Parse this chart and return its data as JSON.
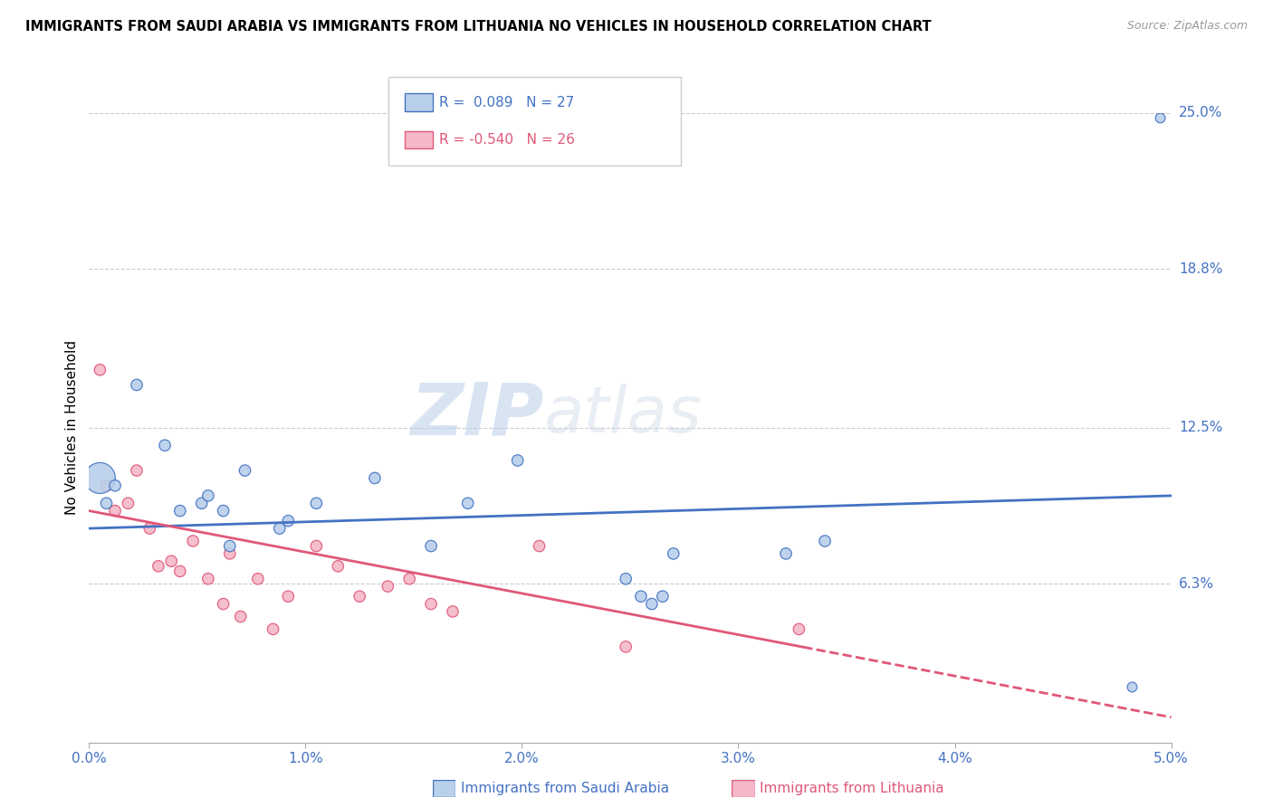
{
  "title": "IMMIGRANTS FROM SAUDI ARABIA VS IMMIGRANTS FROM LITHUANIA NO VEHICLES IN HOUSEHOLD CORRELATION CHART",
  "source": "Source: ZipAtlas.com",
  "ylabel": "No Vehicles in Household",
  "x_min": 0.0,
  "x_max": 5.0,
  "y_min": 0.0,
  "y_max": 25.0,
  "y_ticks": [
    0.0,
    6.3,
    12.5,
    18.8,
    25.0
  ],
  "x_ticks": [
    0.0,
    1.0,
    2.0,
    3.0,
    4.0,
    5.0
  ],
  "color_saudi": "#b8d0ea",
  "color_lithuania": "#f4b8c8",
  "color_saudi_line": "#4472c4",
  "color_lithuania_line": "#e05878",
  "legend_label_saudi": "Immigrants from Saudi Arabia",
  "legend_label_lithuania": "Immigrants from Lithuania",
  "saudi_x": [
    0.05,
    0.08,
    0.12,
    0.22,
    0.35,
    0.42,
    0.52,
    0.55,
    0.62,
    0.65,
    0.72,
    0.88,
    0.92,
    1.05,
    1.32,
    1.58,
    1.75,
    1.98,
    2.48,
    2.55,
    2.6,
    2.65,
    2.7,
    3.22,
    3.4,
    4.82,
    4.95
  ],
  "saudi_y": [
    10.5,
    9.5,
    10.2,
    14.2,
    11.8,
    9.2,
    9.5,
    9.8,
    9.2,
    7.8,
    10.8,
    8.5,
    8.8,
    9.5,
    10.5,
    7.8,
    9.5,
    11.2,
    6.5,
    5.8,
    5.5,
    5.8,
    7.5,
    7.5,
    8.0,
    2.2,
    24.8
  ],
  "saudi_size": [
    600,
    80,
    80,
    80,
    80,
    80,
    80,
    80,
    80,
    80,
    80,
    80,
    80,
    80,
    80,
    80,
    80,
    80,
    80,
    80,
    80,
    80,
    80,
    80,
    80,
    60,
    60
  ],
  "lithuania_x": [
    0.05,
    0.08,
    0.12,
    0.18,
    0.22,
    0.28,
    0.32,
    0.38,
    0.42,
    0.48,
    0.55,
    0.62,
    0.65,
    0.7,
    0.78,
    0.85,
    0.92,
    1.05,
    1.15,
    1.25,
    1.38,
    1.48,
    1.58,
    1.68,
    2.08,
    2.48,
    3.28
  ],
  "lithuania_y": [
    14.8,
    10.2,
    9.2,
    9.5,
    10.8,
    8.5,
    7.0,
    7.2,
    6.8,
    8.0,
    6.5,
    5.5,
    7.5,
    5.0,
    6.5,
    4.5,
    5.8,
    7.8,
    7.0,
    5.8,
    6.2,
    6.5,
    5.5,
    5.2,
    7.8,
    3.8,
    4.5
  ],
  "lithuania_size": [
    80,
    80,
    80,
    80,
    80,
    80,
    80,
    80,
    80,
    80,
    80,
    80,
    80,
    80,
    80,
    80,
    80,
    80,
    80,
    80,
    80,
    80,
    80,
    80,
    80,
    80,
    80
  ],
  "watermark_zip": "ZIP",
  "watermark_atlas": "atlas",
  "saudi_trend_x": [
    0.0,
    5.0
  ],
  "saudi_trend_y": [
    8.5,
    9.8
  ],
  "lith_trend_x0": 0.0,
  "lith_trend_x1": 5.0,
  "lith_trend_y0": 9.2,
  "lith_trend_y1": 1.0,
  "lith_dash_start": 3.3
}
